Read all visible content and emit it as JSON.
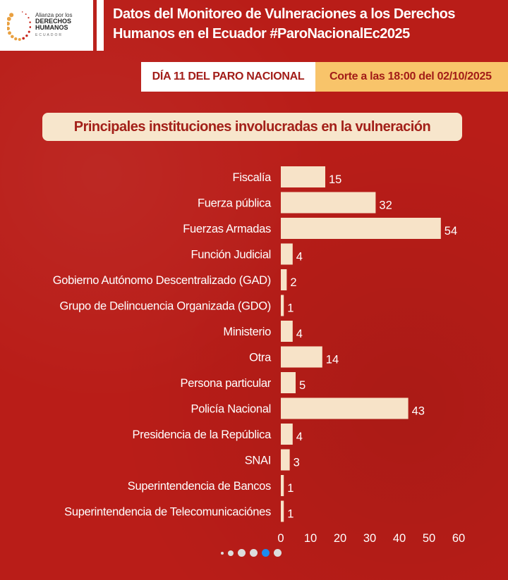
{
  "logo": {
    "line1": "Alianza por los",
    "line2": "DERECHOS",
    "line3": "HUMANOS",
    "line4": "ECUADOR"
  },
  "header": {
    "title_line1": "Datos del Monitoreo de Vulneraciones a los Derechos",
    "title_line2": "Humanos en el Ecuador #ParoNacionalEc2025"
  },
  "banner": {
    "day": "DÍA 11 DEL PARO NACIONAL",
    "cutoff": "Corte a las 18:00 del 02/10/2025"
  },
  "colors": {
    "background": "#b91d18",
    "bar": "#f7e3c8",
    "accent": "#f8c46a",
    "active_dot": "#1a8cf0"
  },
  "chart_data": {
    "type": "bar",
    "orientation": "horizontal",
    "title": "Principales instituciones involucradas en la vulneración",
    "categories": [
      "Fiscalía",
      "Fuerza pública",
      "Fuerzas Armadas",
      "Función Judicial",
      "Gobierno Autónomo Descentralizado (GAD)",
      "Grupo de Delincuencia Organizada (GDO)",
      "Ministerio",
      "Otra",
      "Persona particular",
      "Policía Nacional",
      "Presidencia de la República",
      "SNAI",
      "Superintendencia de Bancos",
      "Superintendencia de Telecomunicaciónes"
    ],
    "values": [
      15,
      32,
      54,
      4,
      2,
      1,
      4,
      14,
      5,
      43,
      4,
      3,
      1,
      1
    ],
    "xlim": [
      0,
      60
    ],
    "xticks": [
      0,
      10,
      20,
      30,
      40,
      50,
      60
    ],
    "grid": false
  },
  "pagination": {
    "count": 6,
    "active": 4
  }
}
